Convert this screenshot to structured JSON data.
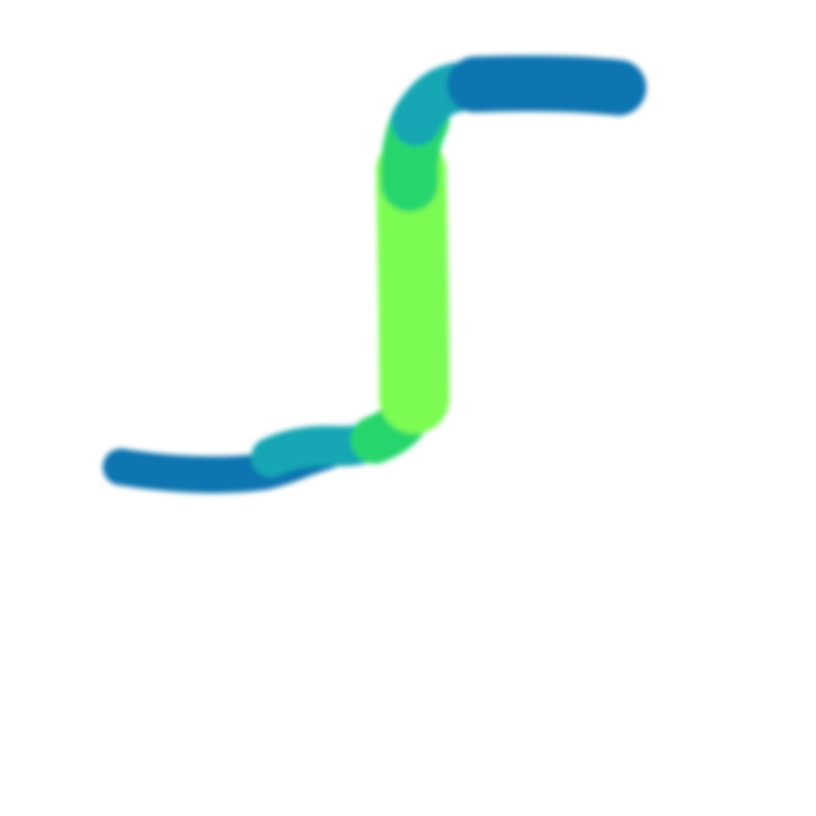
{
  "canvas": {
    "background_color": "#ffffff"
  },
  "stroke": {
    "shape": "s-curve",
    "colors": {
      "end_blue": "#0a74b0",
      "teal": "#14a6b4",
      "sea_green": "#28d66c",
      "bright_green": "#7cfc52"
    }
  }
}
